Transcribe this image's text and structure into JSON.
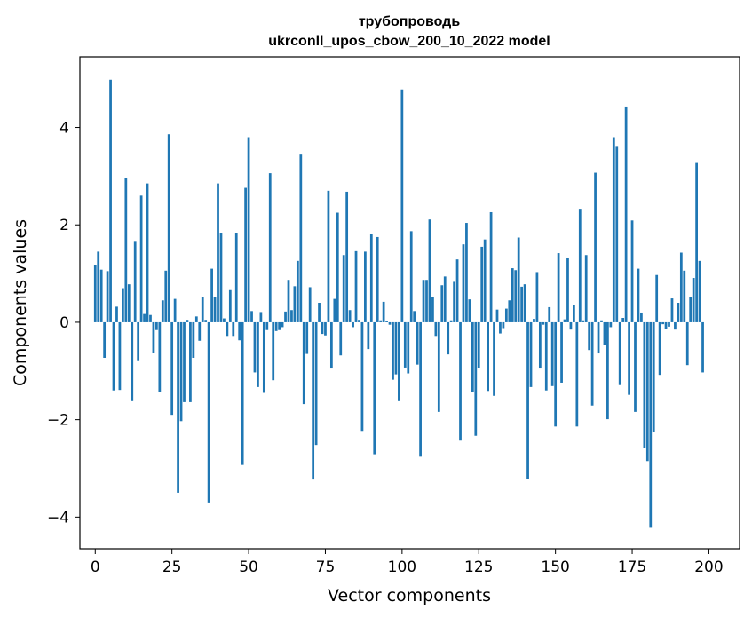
{
  "chart_data": {
    "type": "bar",
    "title": "трубопроводь",
    "subtitle": "ukrconll_upos_cbow_200_10_2022 model",
    "xlabel": "Vector components",
    "ylabel": "Components values",
    "xlim": [
      -5,
      210
    ],
    "ylim": [
      -4.65,
      5.45
    ],
    "xticks": [
      0,
      25,
      50,
      75,
      100,
      125,
      150,
      175,
      200
    ],
    "yticks": [
      -4,
      -2,
      0,
      2,
      4
    ],
    "xtick_labels": [
      "0",
      "25",
      "50",
      "75",
      "100",
      "125",
      "150",
      "175",
      "200"
    ],
    "ytick_labels": [
      "−4",
      "−2",
      "0",
      "2",
      "4"
    ],
    "grid": false,
    "bar_color": "#1f77b4",
    "x_start": 0,
    "values": [
      1.17,
      1.45,
      1.08,
      -0.73,
      1.05,
      4.98,
      -1.4,
      0.32,
      -1.39,
      0.7,
      2.97,
      0.78,
      -1.62,
      1.67,
      -0.78,
      2.6,
      0.17,
      2.85,
      0.15,
      -0.63,
      -0.16,
      -1.44,
      0.45,
      1.06,
      3.86,
      -1.9,
      0.48,
      -3.5,
      -2.03,
      -1.64,
      0.05,
      -1.64,
      -0.73,
      0.12,
      -0.38,
      0.52,
      0.05,
      -3.7,
      1.1,
      0.52,
      2.85,
      1.84,
      0.08,
      -0.28,
      0.66,
      -0.28,
      1.84,
      -0.37,
      -2.93,
      2.76,
      3.8,
      0.23,
      -1.03,
      -1.33,
      0.21,
      -1.45,
      -0.16,
      3.06,
      -1.19,
      -0.18,
      -0.16,
      -0.1,
      0.22,
      0.87,
      0.25,
      0.74,
      1.26,
      3.46,
      -1.68,
      -0.65,
      0.72,
      -3.23,
      -2.52,
      0.4,
      -0.24,
      -0.27,
      2.7,
      -0.95,
      0.48,
      2.25,
      -0.68,
      1.38,
      2.68,
      0.25,
      -0.1,
      1.46,
      0.05,
      -2.23,
      1.45,
      -0.55,
      1.82,
      -2.71,
      1.75,
      0.04,
      0.42,
      0.03,
      -0.05,
      -1.18,
      -1.07,
      -1.62,
      4.78,
      -0.93,
      -1.05,
      1.87,
      0.23,
      -0.87,
      -2.76,
      0.87,
      0.87,
      2.11,
      0.52,
      -0.28,
      -1.84,
      0.76,
      0.94,
      -0.66,
      0.04,
      0.83,
      1.29,
      -2.43,
      1.6,
      2.04,
      0.47,
      -1.43,
      -2.33,
      -0.94,
      1.55,
      1.7,
      -1.41,
      2.26,
      -1.51,
      0.26,
      -0.23,
      -0.12,
      0.28,
      0.45,
      1.11,
      1.07,
      1.74,
      0.73,
      0.78,
      -3.22,
      -1.33,
      0.07,
      1.03,
      -0.95,
      -0.05,
      -1.4,
      0.31,
      -1.31,
      -2.14,
      1.42,
      -1.24,
      0.06,
      1.33,
      -0.15,
      0.36,
      -2.14,
      2.33,
      0.04,
      1.38,
      -0.57,
      -1.71,
      3.07,
      -0.64,
      0.04,
      -0.46,
      -1.99,
      -0.1,
      3.8,
      3.62,
      -1.29,
      0.09,
      4.43,
      -1.49,
      2.09,
      -1.84,
      1.1,
      0.2,
      -2.58,
      -2.85,
      -4.22,
      -2.25,
      0.97,
      -1.08,
      -0.04,
      -0.13,
      -0.09,
      0.49,
      -0.15,
      0.4,
      1.43,
      1.06,
      -0.88,
      0.52,
      0.91,
      3.27,
      1.26,
      -1.03
    ]
  }
}
